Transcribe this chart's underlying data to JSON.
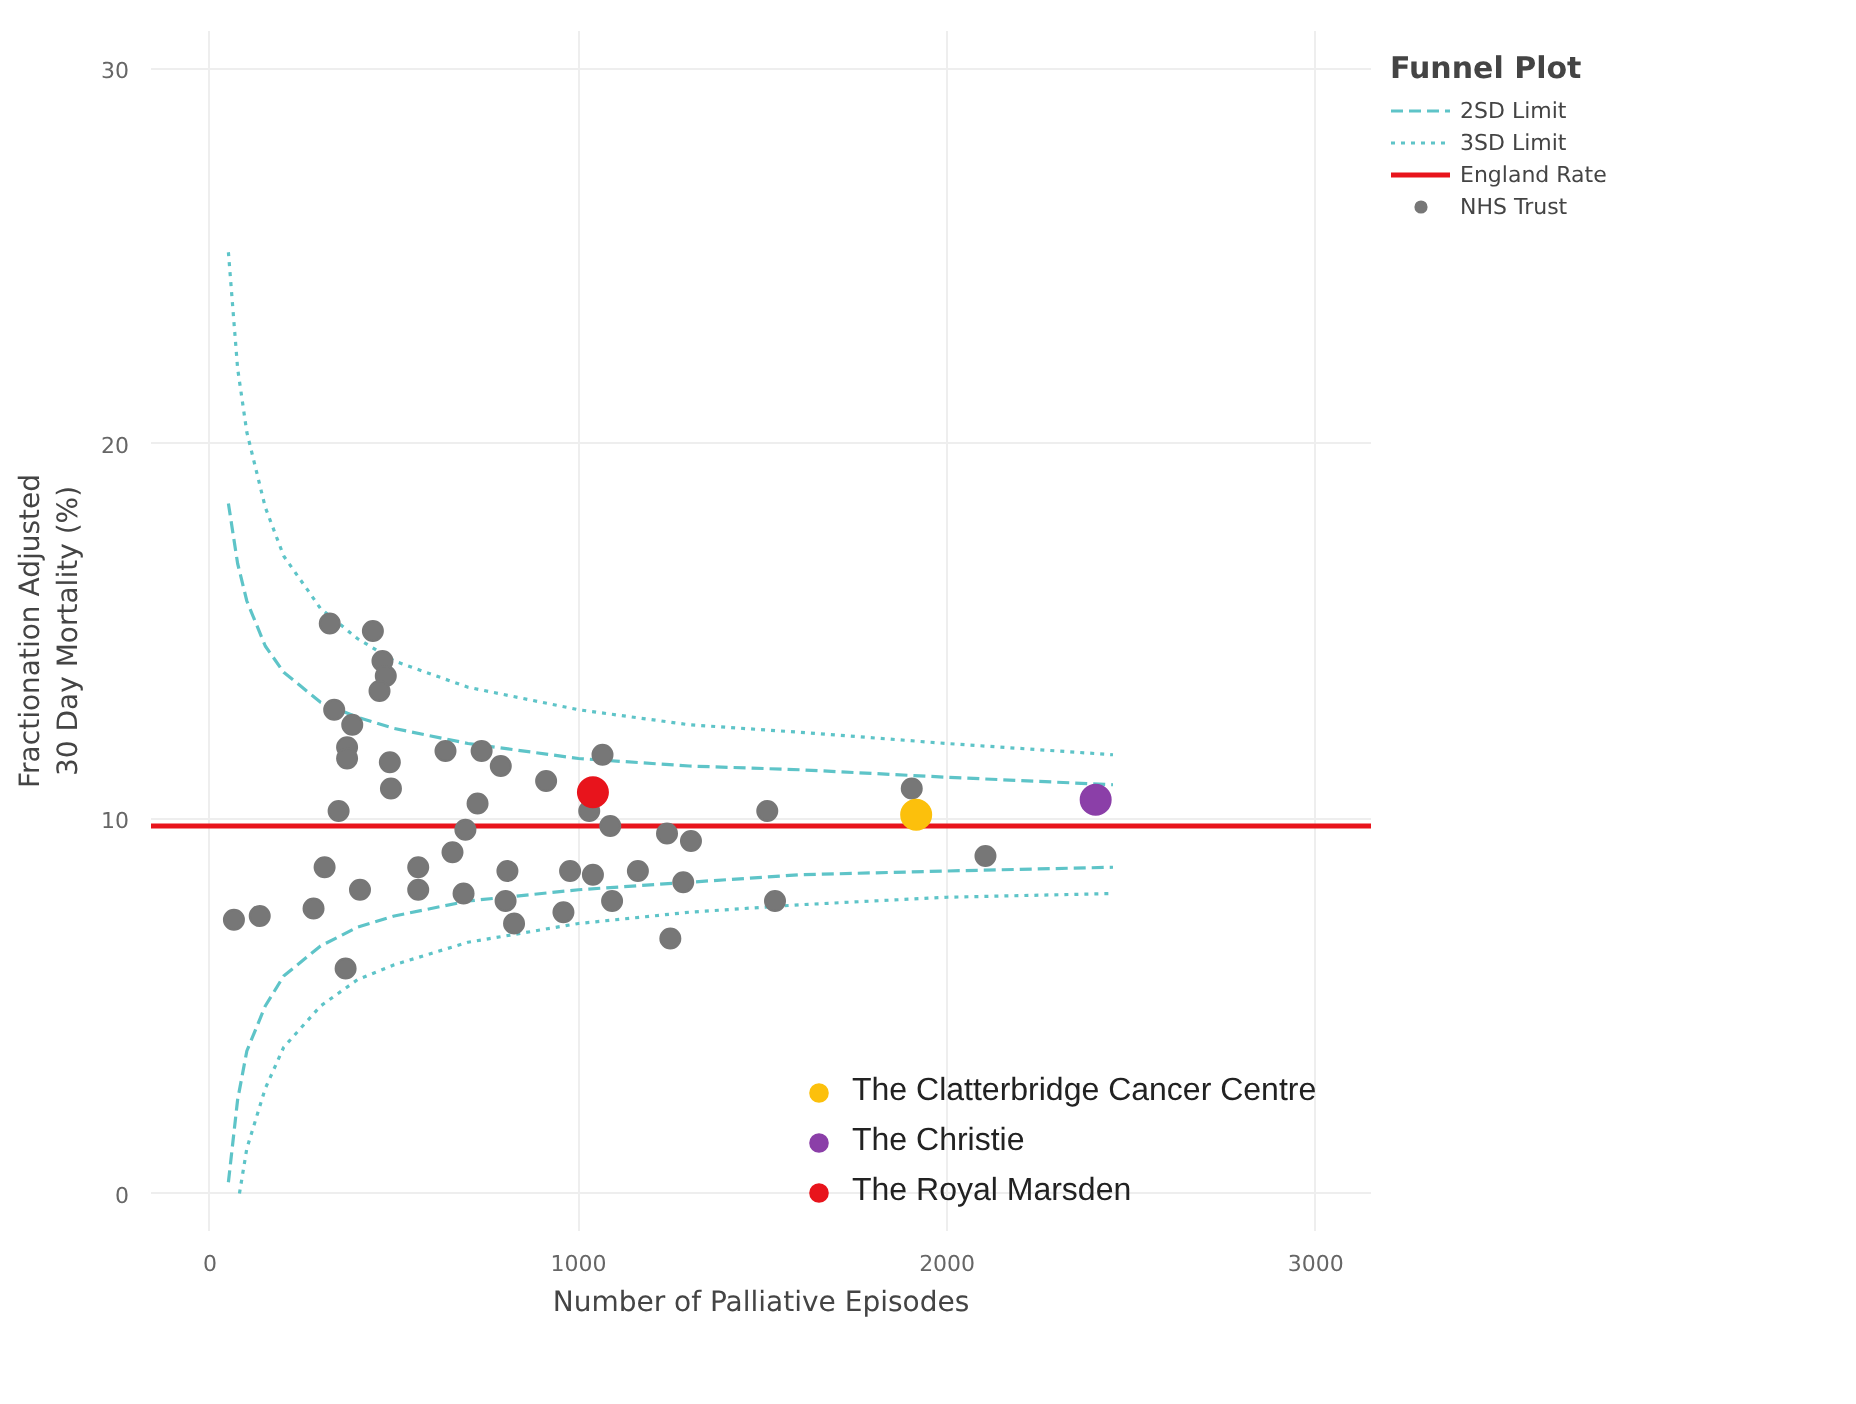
{
  "chart_data": {
    "type": "scatter",
    "xlabel": "Number of Palliative Episodes",
    "ylabel": "Fractionation Adjusted\n30 Day Mortality (%)",
    "legend_title": "Funnel Plot",
    "xlim": [
      -160,
      3150
    ],
    "ylim": [
      -1,
      31
    ],
    "xticks": [
      0,
      1000,
      2000,
      3000
    ],
    "yticks": [
      0,
      10,
      20,
      30
    ],
    "grid": true,
    "legend": "right",
    "ref_lines": [
      {
        "axis": "y",
        "value": 9.8,
        "label": "England Rate",
        "color": "#e8141c"
      }
    ],
    "series": [
      {
        "name": "2SD Limit",
        "type": "line",
        "line_style": "dashed",
        "color": "#5ec4c8",
        "x": [
          50,
          75,
          100,
          150,
          200,
          300,
          400,
          500,
          700,
          1000,
          1300,
          1600,
          2000,
          2450
        ],
        "values": [
          18.4,
          16.8,
          15.8,
          14.6,
          13.9,
          13.1,
          12.7,
          12.4,
          12.0,
          11.6,
          11.4,
          11.3,
          11.1,
          10.9
        ]
      },
      {
        "name": "3SD Limit",
        "type": "line",
        "line_style": "dotted",
        "color": "#5ec4c8",
        "x": [
          50,
          75,
          100,
          150,
          200,
          300,
          400,
          500,
          700,
          1000,
          1300,
          1600,
          2000,
          2450
        ],
        "values": [
          25.1,
          22.0,
          20.3,
          18.3,
          17.0,
          15.6,
          14.8,
          14.2,
          13.5,
          12.9,
          12.5,
          12.3,
          12.0,
          11.7
        ]
      },
      {
        "type": "line",
        "line_style": "dashed",
        "color": "#5ec4c8",
        "x": [
          50,
          75,
          100,
          150,
          200,
          300,
          400,
          500,
          700,
          1000,
          1300,
          1600,
          2000,
          2450
        ],
        "values": [
          0.3,
          2.5,
          3.8,
          5.0,
          5.8,
          6.6,
          7.1,
          7.4,
          7.8,
          8.1,
          8.3,
          8.5,
          8.6,
          8.7
        ]
      },
      {
        "type": "line",
        "line_style": "dotted",
        "color": "#5ec4c8",
        "x": [
          80,
          100,
          150,
          200,
          300,
          400,
          500,
          700,
          1000,
          1300,
          1600,
          2000,
          2450
        ],
        "values": [
          0.0,
          1.2,
          2.8,
          3.9,
          5.0,
          5.7,
          6.1,
          6.7,
          7.2,
          7.5,
          7.7,
          7.9,
          8.0
        ]
      },
      {
        "name": "NHS Trust",
        "marker": "circle",
        "color": "#777777",
        "x": [
          325,
          442,
          468,
          477,
          460,
          337,
          386,
          372,
          372,
          488,
          491,
          639,
          737,
          789,
          912,
          1065,
          1029,
          349,
          726,
          693,
          1086,
          1240,
          1305,
          311,
          565,
          658,
          807,
          977,
          1039,
          1161,
          1284,
          407,
          565,
          688,
          802,
          1091,
          959,
          825,
          281,
          65,
          135,
          368,
          1249,
          1512,
          1904,
          2104,
          1533
        ],
        "values": [
          15.2,
          15.0,
          14.2,
          13.8,
          13.4,
          12.9,
          12.5,
          11.9,
          11.6,
          11.5,
          10.8,
          11.8,
          11.8,
          11.4,
          11.0,
          11.7,
          10.2,
          10.2,
          10.4,
          9.7,
          9.8,
          9.6,
          9.4,
          8.7,
          8.7,
          9.1,
          8.6,
          8.6,
          8.5,
          8.6,
          8.3,
          8.1,
          8.1,
          8.0,
          7.8,
          7.8,
          7.5,
          7.2,
          7.6,
          7.3,
          7.4,
          6.0,
          6.8,
          10.2,
          10.8,
          9.0,
          7.8
        ]
      },
      {
        "name": "The Clatterbridge Cancer Centre",
        "marker": "circle",
        "color": "#fcc00c",
        "x": [
          1916
        ],
        "values": [
          10.1
        ]
      },
      {
        "name": "The Christie",
        "marker": "circle",
        "color": "#8b3fa8",
        "x": [
          2403
        ],
        "values": [
          10.5
        ]
      },
      {
        "name": "The Royal Marsden",
        "marker": "circle",
        "color": "#e8141c",
        "x": [
          1039
        ],
        "values": [
          10.7
        ]
      }
    ]
  }
}
